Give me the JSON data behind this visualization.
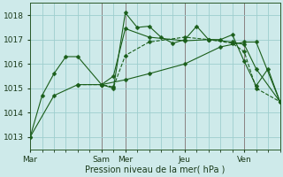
{
  "background_color": "#ceeaea",
  "grid_color": "#9ecece",
  "line_color": "#1a5e1a",
  "ylim": [
    1012.5,
    1018.5
  ],
  "yticks": [
    1013,
    1014,
    1015,
    1016,
    1017,
    1018
  ],
  "xlabel": "Pression niveau de la mer( hPa )",
  "day_labels": [
    "Mar",
    "Sam",
    "Mer",
    "Jeu",
    "Ven"
  ],
  "day_x": [
    0,
    6,
    8,
    13,
    18
  ],
  "xlim": [
    0,
    21
  ],
  "vline_color": "#5a3a3a",
  "lines": [
    {
      "x": [
        0,
        1,
        2,
        3,
        4,
        6,
        7,
        8,
        9,
        10,
        11,
        12,
        13,
        14,
        15,
        16,
        17,
        18,
        19,
        20,
        21
      ],
      "y": [
        1013.0,
        1014.7,
        1015.6,
        1016.3,
        1016.3,
        1015.15,
        1015.0,
        1018.1,
        1017.5,
        1017.55,
        1017.1,
        1016.85,
        1017.0,
        1017.55,
        1017.0,
        1017.0,
        1017.2,
        1016.1,
        1015.1,
        1015.8,
        1014.45
      ],
      "linestyle": "-",
      "marker": "D",
      "markersize": 2.5
    },
    {
      "x": [
        0,
        2,
        4,
        6,
        8,
        10,
        13,
        16,
        18,
        19,
        21
      ],
      "y": [
        1013.0,
        1014.7,
        1015.15,
        1015.15,
        1015.35,
        1015.6,
        1016.0,
        1016.7,
        1016.9,
        1016.9,
        1014.45
      ],
      "linestyle": "-",
      "marker": "D",
      "markersize": 2.5
    },
    {
      "x": [
        4,
        6,
        7,
        8,
        10,
        13,
        15,
        17,
        18,
        19,
        21
      ],
      "y": [
        1015.15,
        1015.15,
        1015.05,
        1016.35,
        1016.9,
        1017.1,
        1017.0,
        1016.85,
        1016.5,
        1015.0,
        1014.45
      ],
      "linestyle": "--",
      "marker": "D",
      "markersize": 2.5
    },
    {
      "x": [
        6,
        7,
        8,
        10,
        13,
        15,
        17,
        18,
        19,
        21
      ],
      "y": [
        1015.15,
        1015.5,
        1017.45,
        1017.1,
        1016.95,
        1017.0,
        1016.9,
        1016.8,
        1015.8,
        1014.45
      ],
      "linestyle": "-",
      "marker": "D",
      "markersize": 2.5
    }
  ]
}
